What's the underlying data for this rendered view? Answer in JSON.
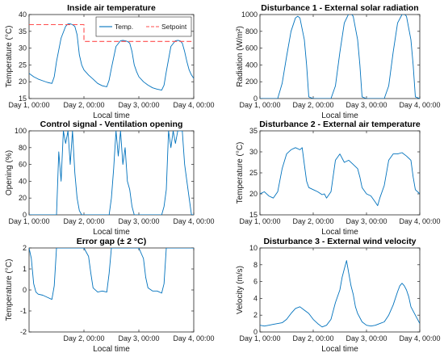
{
  "chart_data": [
    {
      "type": "line",
      "title": "Inside air temperature",
      "xlabel": "Local time",
      "ylabel": "Temperature (°C)",
      "xlim": [
        0,
        72
      ],
      "ylim": [
        15,
        40
      ],
      "yticks": [
        "15",
        "20",
        "25",
        "30",
        "35",
        "40"
      ],
      "xticks": [
        "Day 1, 00:00",
        "Day 2, 00:00",
        "Day 3, 00:00",
        "Day 4, 00:00"
      ],
      "xtick_hours": [
        0,
        24,
        48,
        72
      ],
      "grid": false,
      "legend": "top-right",
      "colors": {
        "Temp.": "#0072BD",
        "Setpoint": "#FF4D4D"
      },
      "series": [
        {
          "name": "Temp.",
          "color": "#0072BD",
          "style": "solid",
          "x": [
            0,
            2,
            4,
            6,
            8,
            10,
            11,
            12,
            14,
            16,
            17,
            18,
            19,
            20,
            21,
            22,
            23,
            24,
            26,
            28,
            30,
            32,
            34,
            35,
            36,
            38,
            40,
            41,
            42,
            43,
            44,
            45,
            46,
            47,
            48,
            50,
            52,
            54,
            56,
            58,
            59,
            60,
            62,
            64,
            65,
            66,
            67,
            68,
            69,
            70,
            71,
            72
          ],
          "y": [
            22.5,
            21.5,
            20.8,
            20.3,
            19.8,
            19.5,
            21.5,
            26,
            33,
            36.5,
            37.2,
            37.2,
            37,
            36.5,
            34,
            28,
            25,
            23.5,
            22,
            20.8,
            19.5,
            18.8,
            18.5,
            20.5,
            24,
            30.5,
            32.2,
            32.3,
            32.2,
            32,
            31.5,
            29,
            25,
            23,
            21.5,
            20,
            19,
            18.2,
            17.8,
            17.5,
            19,
            23,
            30.5,
            32.2,
            32.3,
            32.2,
            31.5,
            29,
            26,
            23.5,
            22,
            21
          ]
        },
        {
          "name": "Setpoint",
          "color": "#FF4D4D",
          "style": "dashed",
          "x": [
            0,
            24,
            24,
            72
          ],
          "y": [
            37,
            37,
            32,
            32
          ]
        }
      ]
    },
    {
      "type": "line",
      "title": "Disturbance 1 - External solar radiation",
      "xlabel": "Local time",
      "ylabel": "Radiation (W/m²)",
      "xlim": [
        0,
        72
      ],
      "ylim": [
        0,
        1000
      ],
      "yticks": [
        "0",
        "200",
        "400",
        "600",
        "800",
        "1000"
      ],
      "xticks": [
        "Day 1, 00:00",
        "Day 2, 00:00",
        "Day 3, 00:00",
        "Day 4, 00:00"
      ],
      "xtick_hours": [
        0,
        24,
        48,
        72
      ],
      "grid": false,
      "series": [
        {
          "name": "",
          "color": "#0072BD",
          "x": [
            0,
            6,
            8,
            10,
            12,
            14,
            16,
            17,
            18,
            20,
            21,
            22,
            24,
            30,
            32,
            34,
            36,
            38,
            40,
            41,
            42,
            44,
            45,
            46,
            48,
            54,
            56,
            58,
            60,
            62,
            64,
            65,
            66,
            68,
            69,
            70,
            72
          ],
          "y": [
            0,
            0,
            0,
            180,
            500,
            800,
            960,
            980,
            960,
            700,
            400,
            20,
            0,
            0,
            0,
            150,
            550,
            900,
            1010,
            1010,
            980,
            700,
            400,
            20,
            0,
            0,
            0,
            150,
            550,
            900,
            1000,
            1005,
            980,
            700,
            400,
            20,
            0
          ]
        }
      ]
    },
    {
      "type": "line",
      "title": "Control signal - Ventilation opening",
      "xlabel": "Local time",
      "ylabel": "Opening (%)",
      "xlim": [
        0,
        72
      ],
      "ylim": [
        0,
        100
      ],
      "yticks": [
        "0",
        "20",
        "40",
        "60",
        "80",
        "100"
      ],
      "xticks": [
        "Day 1, 00:00",
        "Day 2, 00:00",
        "Day 3, 00:00",
        "Day 4, 00:00"
      ],
      "xtick_hours": [
        0,
        24,
        48,
        72
      ],
      "grid": false,
      "series": [
        {
          "name": "",
          "color": "#0072BD",
          "x": [
            0,
            12,
            13,
            14,
            15,
            16,
            17,
            18,
            19,
            20,
            21,
            22,
            23,
            24,
            30,
            35,
            36,
            37,
            38,
            39,
            40,
            41,
            42,
            43,
            44,
            45,
            46,
            47,
            48,
            58,
            59,
            60,
            61,
            62,
            63,
            64,
            65,
            66,
            67,
            68,
            69,
            70,
            71,
            72
          ],
          "y": [
            0,
            0,
            75,
            40,
            100,
            85,
            100,
            60,
            100,
            50,
            20,
            5,
            0,
            0,
            0,
            0,
            20,
            55,
            100,
            70,
            100,
            60,
            80,
            40,
            30,
            10,
            0,
            0,
            0,
            0,
            10,
            30,
            100,
            80,
            100,
            85,
            100,
            100,
            100,
            60,
            40,
            20,
            0,
            0
          ]
        }
      ]
    },
    {
      "type": "line",
      "title": "Disturbance 2 - External air temperature",
      "xlabel": "Local time",
      "ylabel": "Temperature (°C)",
      "xlim": [
        0,
        72
      ],
      "ylim": [
        15,
        35
      ],
      "yticks": [
        "15",
        "20",
        "25",
        "30",
        "35"
      ],
      "xticks": [
        "Day 1, 00:00",
        "Day 2, 00:00",
        "Day 3, 00:00",
        "Day 4, 00:00"
      ],
      "xtick_hours": [
        0,
        24,
        48,
        72
      ],
      "grid": false,
      "series": [
        {
          "name": "",
          "color": "#0072BD",
          "x": [
            0,
            2,
            4,
            6,
            8,
            10,
            12,
            14,
            16,
            18,
            19,
            20,
            21,
            22,
            24,
            26,
            28,
            29,
            30,
            32,
            34,
            36,
            38,
            40,
            42,
            44,
            45,
            46,
            48,
            50,
            52,
            53,
            54,
            56,
            58,
            60,
            62,
            64,
            66,
            68,
            69,
            70,
            72
          ],
          "y": [
            20,
            20.5,
            19.5,
            19,
            20.5,
            26,
            29.5,
            30.5,
            31,
            30.5,
            31,
            27,
            23,
            21.5,
            21,
            20.5,
            19.8,
            20,
            19,
            20.5,
            28,
            29.5,
            27.5,
            28,
            27,
            26,
            24,
            21.5,
            20,
            19.5,
            18,
            17.2,
            19,
            22,
            28,
            29.5,
            29.5,
            29.8,
            29,
            28,
            24,
            21,
            20
          ]
        }
      ]
    },
    {
      "type": "line",
      "title": "Error gap (± 2 °C)",
      "xlabel": "Local time",
      "ylabel": "Temperature (°C)",
      "xlim": [
        0,
        72
      ],
      "ylim": [
        -2,
        2
      ],
      "yticks": [
        "-2",
        "-1",
        "0",
        "1",
        "2"
      ],
      "xticks": [
        "Day 2, 00:00",
        "Day 3, 00:00",
        "Day 4, 00:00"
      ],
      "xtick_hours": [
        24,
        48,
        72
      ],
      "grid": false,
      "series": [
        {
          "name": "",
          "color": "#0072BD",
          "x": [
            0,
            1,
            2,
            3,
            4,
            6,
            8,
            10,
            11,
            12,
            24,
            26,
            27,
            28,
            30,
            32,
            34,
            35,
            36,
            48,
            50,
            51,
            52,
            54,
            56,
            58,
            59,
            60,
            72
          ],
          "y": [
            2,
            1.5,
            0.3,
            -0.1,
            -0.2,
            -0.25,
            -0.35,
            -0.45,
            0.2,
            2,
            2,
            1.6,
            0.8,
            0.1,
            -0.1,
            -0.05,
            -0.1,
            0.8,
            2,
            2,
            1.5,
            0.6,
            0.1,
            -0.05,
            -0.05,
            -0.15,
            0.3,
            2,
            2
          ]
        }
      ]
    },
    {
      "type": "line",
      "title": "Disturbance 3 - External wind velocity",
      "xlabel": "Local time",
      "ylabel": "Velocity (m/s)",
      "xlim": [
        0,
        72
      ],
      "ylim": [
        0,
        10
      ],
      "yticks": [
        "0",
        "2",
        "4",
        "6",
        "8",
        "10"
      ],
      "xticks": [
        "Day 1, 00:00",
        "Day 2, 00:00",
        "Day 3, 00:00",
        "Day 4, 00:00"
      ],
      "xtick_hours": [
        0,
        24,
        48,
        72
      ],
      "grid": false,
      "series": [
        {
          "name": "",
          "color": "#0072BD",
          "x": [
            0,
            2,
            4,
            6,
            8,
            10,
            12,
            14,
            16,
            18,
            20,
            22,
            24,
            26,
            28,
            30,
            32,
            34,
            36,
            37,
            38,
            39,
            40,
            41,
            42,
            43,
            44,
            46,
            48,
            50,
            52,
            54,
            56,
            58,
            60,
            62,
            63,
            64,
            65,
            66,
            67,
            68,
            70,
            72
          ],
          "y": [
            0.8,
            0.7,
            0.8,
            0.9,
            1.0,
            1.1,
            1.5,
            2.2,
            2.8,
            3.0,
            2.6,
            2.2,
            1.5,
            1.0,
            0.6,
            0.8,
            1.5,
            3.5,
            5.0,
            6.5,
            7.5,
            8.5,
            7.0,
            5.5,
            4.5,
            3.0,
            2.2,
            1.2,
            0.8,
            0.7,
            0.8,
            1.0,
            1.2,
            2.0,
            3.2,
            4.8,
            5.5,
            5.8,
            5.5,
            5.0,
            4.2,
            3.0,
            2.0,
            1.0
          ]
        }
      ]
    }
  ]
}
